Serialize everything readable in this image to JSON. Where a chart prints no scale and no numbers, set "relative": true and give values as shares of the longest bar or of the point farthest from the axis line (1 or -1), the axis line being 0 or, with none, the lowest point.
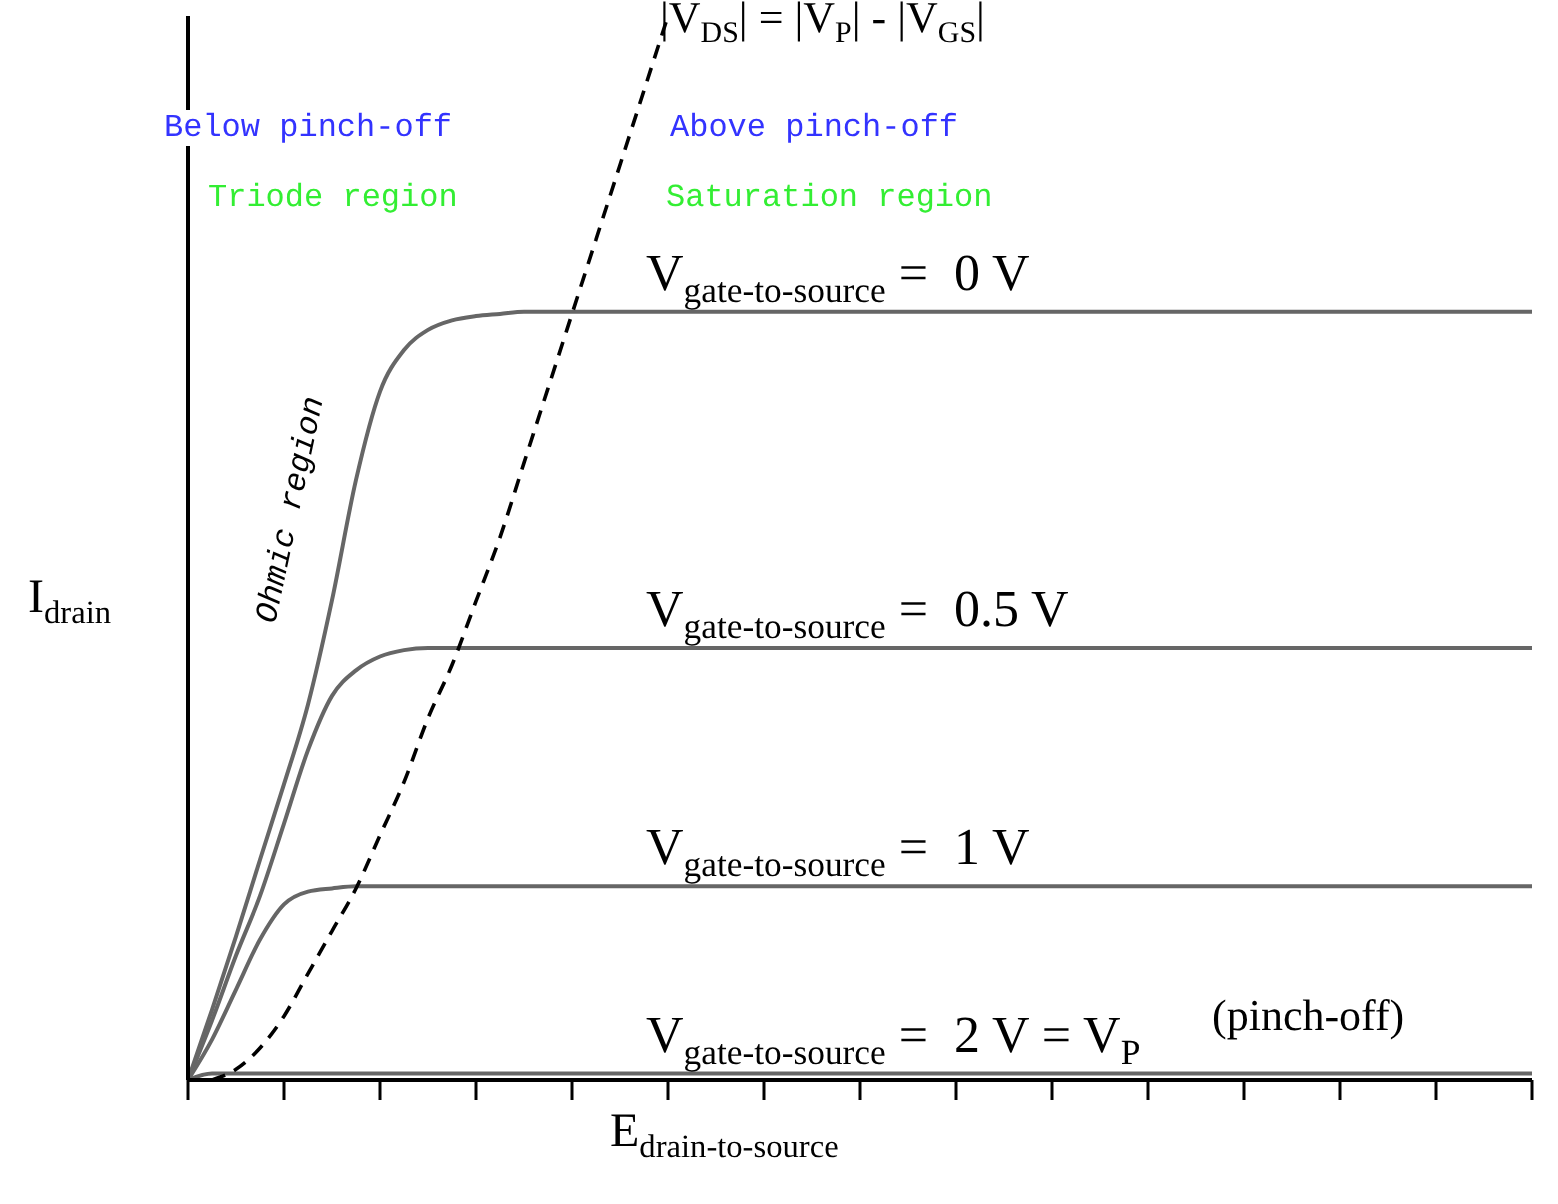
{
  "chart_data": {
    "type": "line",
    "relative": true,
    "xlabel": "E$_{drain-to-source}$",
    "ylabel": "I$_{drain}$",
    "categories": [
      null,
      null,
      null,
      null,
      null,
      null,
      null,
      null,
      null,
      null,
      null,
      null,
      null,
      null,
      null,
      null,
      null,
      null,
      null,
      null,
      null,
      null,
      null,
      null,
      null,
      null,
      null,
      null,
      null,
      null,
      null,
      null,
      null,
      null,
      null,
      null,
      null,
      null,
      null,
      null,
      null,
      null,
      null,
      null,
      null,
      null,
      null,
      null,
      null,
      null,
      null,
      null,
      null,
      null,
      null,
      null,
      null
    ],
    "series": [
      {
        "name": "V$_{gate-to-source}$ =  0 V",
        "color": "#666666",
        "values": [
          0,
          0.066,
          0.135,
          0.207,
          0.278,
          0.353,
          0.451,
          0.564,
          0.647,
          0.686,
          0.705,
          0.714,
          0.718,
          0.72,
          0.722,
          0.722,
          0.722,
          0.722,
          0.722,
          0.722,
          0.722,
          0.722,
          0.722,
          0.722,
          0.722,
          0.722,
          0.722,
          0.722,
          0.722,
          0.722,
          0.722,
          0.722,
          0.722,
          0.722,
          0.722,
          0.722,
          0.722,
          0.722,
          0.722,
          0.722,
          0.722,
          0.722,
          0.722,
          0.722,
          0.722,
          0.722,
          0.722,
          0.722,
          0.722,
          0.722,
          0.722,
          0.722,
          0.722,
          0.722,
          0.722,
          0.722,
          0.722
        ]
      },
      {
        "name": "V$_{gate-to-source}$ =  0.5 V",
        "color": "#666666",
        "values": [
          0,
          0.056,
          0.117,
          0.173,
          0.241,
          0.31,
          0.361,
          0.385,
          0.398,
          0.404,
          0.406,
          0.406,
          0.406,
          0.406,
          0.406,
          0.406,
          0.406,
          0.406,
          0.406,
          0.406,
          0.406,
          0.406,
          0.406,
          0.406,
          0.406,
          0.406,
          0.406,
          0.406,
          0.406,
          0.406,
          0.406,
          0.406,
          0.406,
          0.406,
          0.406,
          0.406,
          0.406,
          0.406,
          0.406,
          0.406,
          0.406,
          0.406,
          0.406,
          0.406,
          0.406,
          0.406,
          0.406,
          0.406,
          0.406,
          0.406,
          0.406,
          0.406,
          0.406,
          0.406,
          0.406,
          0.406,
          0.406
        ]
      },
      {
        "name": "V$_{gate-to-source}$ =  1 V",
        "color": "#666666",
        "values": [
          0,
          0.038,
          0.085,
          0.132,
          0.165,
          0.177,
          0.18,
          0.182,
          0.182,
          0.182,
          0.182,
          0.182,
          0.182,
          0.182,
          0.182,
          0.182,
          0.182,
          0.182,
          0.182,
          0.182,
          0.182,
          0.182,
          0.182,
          0.182,
          0.182,
          0.182,
          0.182,
          0.182,
          0.182,
          0.182,
          0.182,
          0.182,
          0.182,
          0.182,
          0.182,
          0.182,
          0.182,
          0.182,
          0.182,
          0.182,
          0.182,
          0.182,
          0.182,
          0.182,
          0.182,
          0.182,
          0.182,
          0.182,
          0.182,
          0.182,
          0.182,
          0.182,
          0.182,
          0.182,
          0.182,
          0.182,
          0.182
        ]
      },
      {
        "name": "V$_{gate-to-source}$ =  2 V = V$_{P}$",
        "color": "#666666",
        "values": [
          0,
          0.006,
          0.006,
          0.006,
          0.006,
          0.006,
          0.006,
          0.006,
          0.006,
          0.006,
          0.006,
          0.006,
          0.006,
          0.006,
          0.006,
          0.006,
          0.006,
          0.006,
          0.006,
          0.006,
          0.006,
          0.006,
          0.006,
          0.006,
          0.006,
          0.006,
          0.006,
          0.006,
          0.006,
          0.006,
          0.006,
          0.006,
          0.006,
          0.006,
          0.006,
          0.006,
          0.006,
          0.006,
          0.006,
          0.006,
          0.006,
          0.006,
          0.006,
          0.006,
          0.006,
          0.006,
          0.006,
          0.006,
          0.006,
          0.006,
          0.006,
          0.006,
          0.006,
          0.006,
          0.006,
          0.006,
          0.006
        ]
      },
      {
        "name": "|V$_{DS}$| = |V$_{P}$| - |V$_{GS}$|",
        "color": "#000000",
        "line_style": "dashed",
        "values": [
          null,
          0,
          0.01,
          0.03,
          0.06,
          0.1,
          0.14,
          0.18,
          0.23,
          0.28,
          0.34,
          0.39,
          0.45,
          0.51,
          0.58,
          0.65,
          0.72,
          0.79,
          0.86,
          0.93,
          1,
          null,
          null,
          null,
          null,
          null,
          null,
          null,
          null,
          null,
          null,
          null,
          null,
          null,
          null,
          null,
          null,
          null,
          null,
          null,
          null,
          null,
          null,
          null,
          null,
          null,
          null,
          null,
          null,
          null,
          null,
          null,
          null,
          null,
          null,
          null,
          null
        ]
      }
    ],
    "annotations": [
      "Below pinch-off",
      "Above pinch-off",
      "Triode region",
      "Saturation region",
      "Ohmic region",
      "(pinch-off)"
    ],
    "marker": "none",
    "line_style": "solid",
    "grid": false,
    "legend": false
  }
}
